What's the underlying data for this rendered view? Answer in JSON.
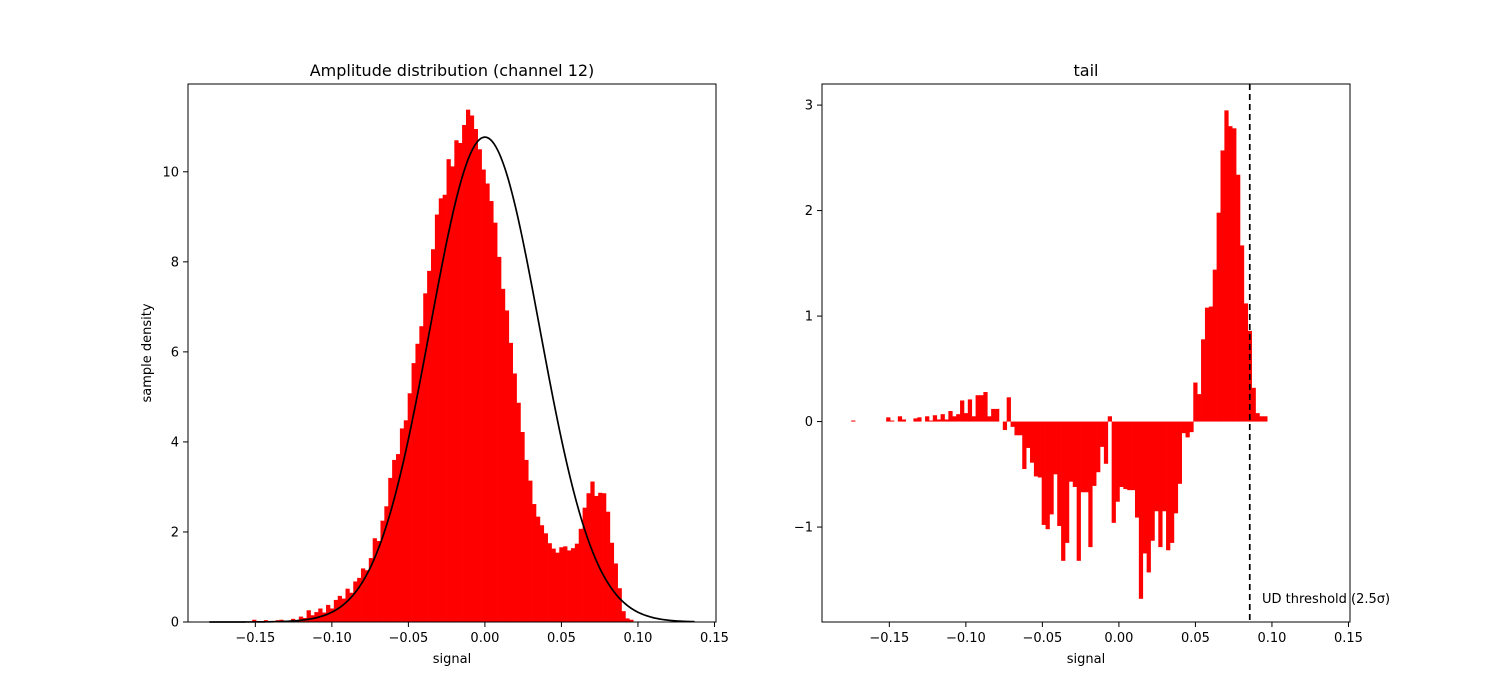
{
  "chart_data": [
    {
      "type": "bar",
      "title": "Amplitude distribution (channel 12)",
      "xlabel": "signal",
      "ylabel": "sample density",
      "xlim": [
        -0.194,
        0.151
      ],
      "ylim": [
        0,
        11.95
      ],
      "xticks": [
        -0.15,
        -0.1,
        -0.05,
        0.0,
        0.05,
        0.1,
        0.15
      ],
      "xtick_labels": [
        "−0.15",
        "−0.10",
        "−0.05",
        "0.00",
        "0.05",
        "0.10",
        "0.15"
      ],
      "yticks": [
        0,
        2,
        4,
        6,
        8,
        10
      ],
      "ytick_labels": [
        "0",
        "2",
        "4",
        "6",
        "8",
        "10"
      ],
      "bin_start": -0.18,
      "bin_width": 0.00254,
      "bar_color": "#ff0000",
      "values": [
        0.01,
        0.01,
        0.01,
        0.01,
        0.01,
        0.01,
        0.01,
        0.01,
        0.01,
        0.01,
        0.01,
        0.05,
        0.02,
        0.01,
        0.04,
        0.01,
        0.01,
        0.04,
        0.05,
        0.02,
        0.03,
        0.07,
        0.03,
        0.12,
        0.09,
        0.26,
        0.15,
        0.22,
        0.3,
        0.21,
        0.38,
        0.3,
        0.49,
        0.58,
        0.52,
        0.74,
        0.65,
        0.9,
        0.98,
        1.19,
        1.15,
        1.42,
        1.86,
        1.8,
        2.25,
        2.57,
        3.2,
        3.6,
        3.73,
        4.3,
        4.48,
        5.08,
        5.75,
        6.18,
        6.57,
        7.3,
        7.8,
        8.28,
        9.05,
        9.41,
        9.49,
        10.28,
        10.12,
        10.7,
        10.64,
        11.04,
        11.38,
        11.25,
        10.95,
        10.5,
        10.05,
        9.74,
        9.35,
        8.87,
        8.11,
        7.4,
        6.92,
        6.2,
        5.52,
        4.87,
        4.22,
        3.6,
        3.14,
        2.62,
        2.34,
        2.15,
        1.97,
        1.75,
        1.63,
        1.54,
        1.66,
        1.68,
        1.59,
        1.64,
        1.74,
        2.07,
        2.54,
        2.86,
        3.12,
        2.8,
        2.87,
        2.86,
        2.45,
        1.76,
        1.3,
        0.75,
        0.24,
        0.08,
        0.05
      ],
      "fit_curve": {
        "name": "gaussian fit",
        "color": "#000000",
        "mean": 0.0,
        "sigma": 0.0358,
        "peak": 10.77,
        "x_range": [
          -0.18,
          0.137
        ]
      }
    },
    {
      "type": "bar",
      "title": "tail",
      "xlabel": "signal",
      "ylabel": "",
      "xlim": [
        -0.194,
        0.151
      ],
      "ylim": [
        -1.9,
        3.2
      ],
      "xticks": [
        -0.15,
        -0.1,
        -0.05,
        0.0,
        0.05,
        0.1,
        0.15
      ],
      "xtick_labels": [
        "−0.15",
        "−0.10",
        "−0.05",
        "0.00",
        "0.05",
        "0.10",
        "0.15"
      ],
      "yticks": [
        -1,
        0,
        1,
        2,
        3
      ],
      "ytick_labels": [
        "−1",
        "0",
        "1",
        "2",
        "3"
      ],
      "bin_start": -0.18,
      "bin_width": 0.00254,
      "bar_color": "#ff0000",
      "values": [
        0.0,
        0.0,
        0.01,
        0.0,
        0.0,
        0.0,
        0.0,
        0.0,
        0.0,
        0.0,
        0.0,
        0.04,
        0.01,
        0.0,
        0.05,
        0.02,
        0.0,
        0.0,
        0.03,
        0.04,
        0.0,
        0.05,
        0.01,
        0.06,
        0.02,
        0.07,
        0.02,
        0.1,
        0.05,
        0.07,
        0.2,
        0.08,
        0.21,
        0.05,
        0.25,
        0.25,
        0.28,
        0.05,
        0.12,
        0.12,
        0.0,
        -0.08,
        0.23,
        -0.05,
        -0.13,
        -0.13,
        -0.45,
        -0.25,
        -0.39,
        -0.52,
        -0.53,
        -0.98,
        -1.02,
        -0.88,
        -0.5,
        -0.99,
        -1.32,
        -1.15,
        -0.57,
        -0.62,
        -1.32,
        -0.67,
        -0.67,
        -1.19,
        -0.61,
        -0.48,
        -0.24,
        -0.4,
        0.05,
        -0.96,
        -0.76,
        -0.62,
        -0.64,
        -0.65,
        -0.65,
        -0.91,
        -1.68,
        -1.25,
        -1.43,
        -1.13,
        -0.85,
        -1.19,
        -0.85,
        -1.22,
        -1.15,
        -0.87,
        -0.59,
        -0.11,
        -0.15,
        -0.1,
        0.37,
        0.26,
        0.78,
        1.08,
        1.09,
        1.44,
        1.98,
        2.57,
        2.95,
        2.8,
        2.78,
        2.34,
        1.67,
        1.12,
        0.86,
        0.32,
        0.08,
        0.05,
        0.05
      ],
      "threshold": {
        "x": 0.0855,
        "label": "UD threshold (2.5σ)",
        "color": "#000000"
      }
    }
  ]
}
